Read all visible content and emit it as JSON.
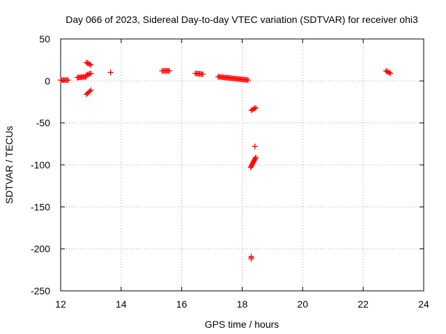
{
  "chart_data": {
    "type": "scatter",
    "title": "Day 066 of 2023, Sidereal Day-to-day VTEC variation (SDTVAR) for receiver ohi3",
    "xlabel": "GPS time / hours",
    "ylabel": "SDTVAR / TECUs",
    "xlim": [
      12,
      24
    ],
    "ylim": [
      -250,
      50
    ],
    "xticks": [
      12,
      14,
      16,
      18,
      20,
      22,
      24
    ],
    "yticks": [
      50,
      0,
      -50,
      -100,
      -150,
      -200,
      -250
    ],
    "grid": true,
    "marker": "plus",
    "color": "#ff0000",
    "series": [
      {
        "name": "SDTVAR",
        "segments": [
          {
            "x": [
              12.0,
              12.25
            ],
            "y": [
              1,
              1
            ]
          },
          {
            "x": [
              12.55,
              12.85
            ],
            "y": [
              4,
              5
            ]
          },
          {
            "x": [
              12.85,
              13.0
            ],
            "y": [
              7,
              9
            ]
          },
          {
            "x": [
              12.85,
              13.0
            ],
            "y": [
              22,
              19
            ]
          },
          {
            "x": [
              12.85,
              13.0
            ],
            "y": [
              -16,
              -11
            ]
          },
          {
            "x": [
              13.65,
              13.65
            ],
            "y": [
              10,
              10
            ]
          },
          {
            "x": [
              15.35,
              15.6
            ],
            "y": [
              12,
              12
            ]
          },
          {
            "x": [
              16.45,
              16.7
            ],
            "y": [
              9,
              8
            ]
          },
          {
            "x": [
              17.2,
              18.2
            ],
            "y": [
              5,
              1
            ]
          },
          {
            "x": [
              18.3,
              18.45
            ],
            "y": [
              -35,
              -32
            ]
          },
          {
            "x": [
              18.42,
              18.42
            ],
            "y": [
              -78,
              -78
            ]
          },
          {
            "x": [
              18.28,
              18.45
            ],
            "y": [
              -103,
              -91
            ]
          },
          {
            "x": [
              18.3,
              18.3
            ],
            "y": [
              -212,
              -209
            ]
          },
          {
            "x": [
              22.75,
              22.9
            ],
            "y": [
              12,
              9
            ]
          }
        ]
      }
    ]
  }
}
